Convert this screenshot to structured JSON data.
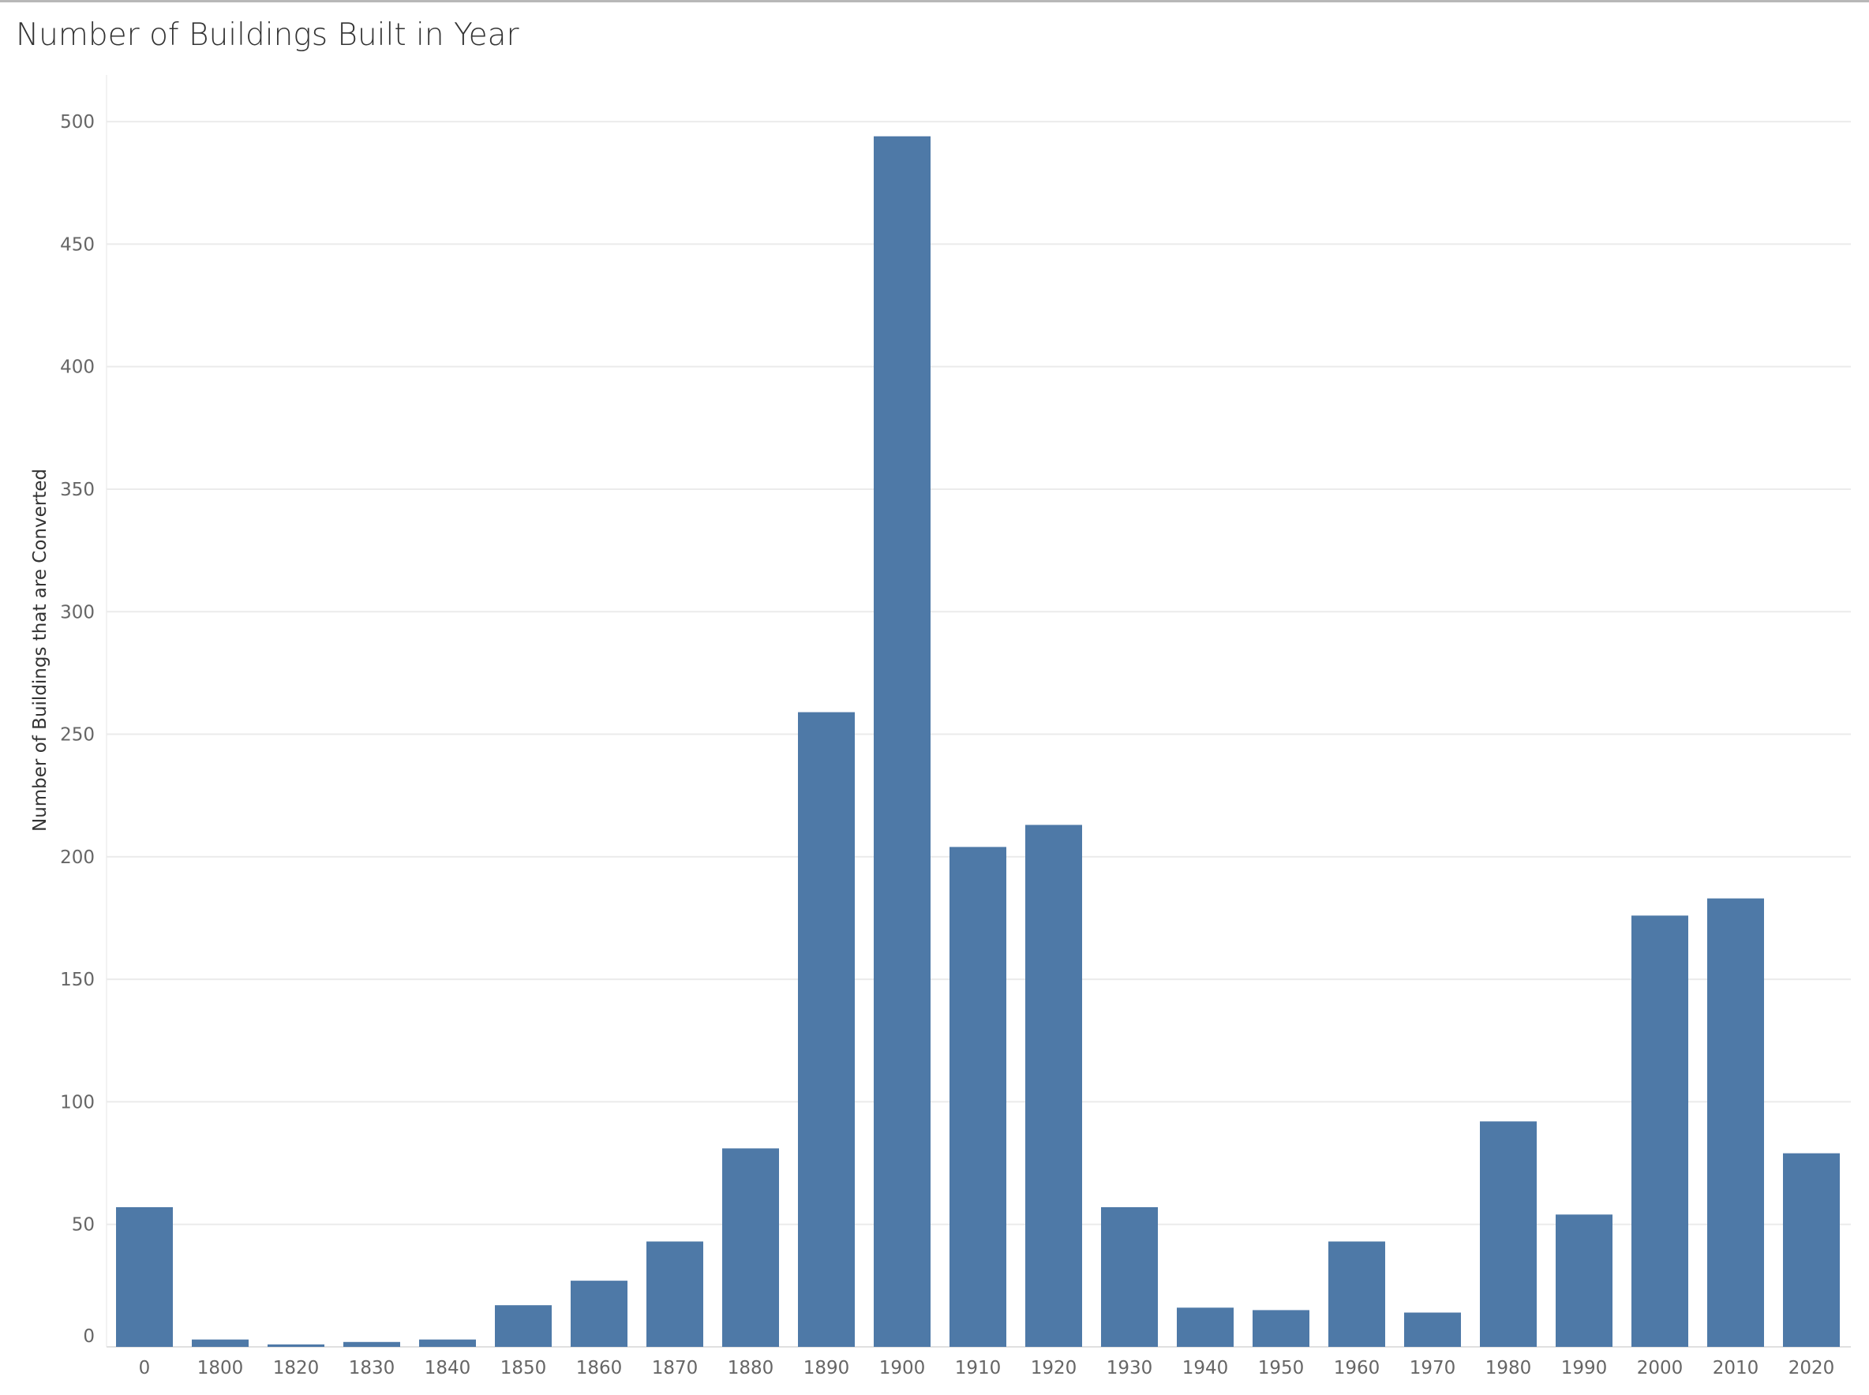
{
  "chart_data": {
    "type": "bar",
    "title": "Number of Buildings Built in Year",
    "xlabel": "",
    "ylabel": "Number of Buildings that are Converted",
    "categories": [
      "0",
      "1800",
      "1820",
      "1830",
      "1840",
      "1850",
      "1860",
      "1870",
      "1880",
      "1890",
      "1900",
      "1910",
      "1920",
      "1930",
      "1940",
      "1950",
      "1960",
      "1970",
      "1980",
      "1990",
      "2000",
      "2010",
      "2020"
    ],
    "values": [
      57,
      3,
      1,
      2,
      3,
      17,
      27,
      43,
      81,
      259,
      494,
      204,
      213,
      57,
      16,
      15,
      43,
      14,
      92,
      54,
      176,
      183,
      79
    ],
    "ylim": [
      0,
      520
    ],
    "yticks": [
      0,
      50,
      100,
      150,
      200,
      250,
      300,
      350,
      400,
      450,
      500
    ],
    "grid": true,
    "colors": {
      "bar": "#4e79a7",
      "grid": "#ebebeb",
      "text": "#666666"
    }
  }
}
